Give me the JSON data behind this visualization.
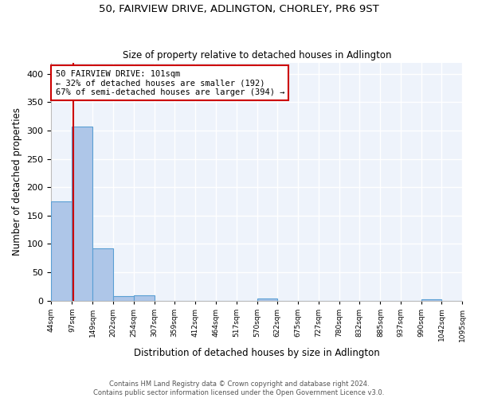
{
  "title": "50, FAIRVIEW DRIVE, ADLINGTON, CHORLEY, PR6 9ST",
  "subtitle": "Size of property relative to detached houses in Adlington",
  "xlabel": "Distribution of detached houses by size in Adlington",
  "ylabel": "Number of detached properties",
  "bin_edges": [
    44,
    97,
    149,
    202,
    254,
    307,
    359,
    412,
    464,
    517,
    570,
    622,
    675,
    727,
    780,
    832,
    885,
    937,
    990,
    1042,
    1095
  ],
  "bar_heights": [
    175,
    307,
    92,
    8,
    9,
    0,
    0,
    0,
    0,
    0,
    3,
    0,
    0,
    0,
    0,
    0,
    0,
    0,
    2,
    0
  ],
  "bar_color": "#aec6e8",
  "bar_edge_color": "#5a9fd4",
  "bg_color": "#eef3fb",
  "grid_color": "#ffffff",
  "red_line_x": 101,
  "annotation_text": "50 FAIRVIEW DRIVE: 101sqm\n← 32% of detached houses are smaller (192)\n67% of semi-detached houses are larger (394) →",
  "annotation_box_color": "#ffffff",
  "annotation_box_edge": "#cc0000",
  "footnote1": "Contains HM Land Registry data © Crown copyright and database right 2024.",
  "footnote2": "Contains public sector information licensed under the Open Government Licence v3.0.",
  "ylim": [
    0,
    420
  ],
  "yticks": [
    0,
    50,
    100,
    150,
    200,
    250,
    300,
    350,
    400
  ]
}
